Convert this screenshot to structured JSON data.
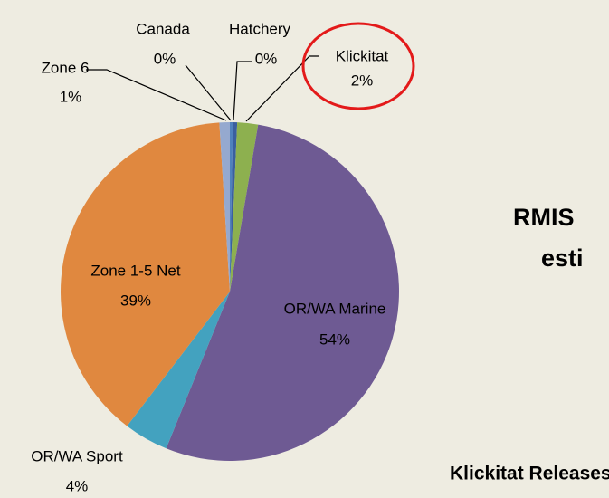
{
  "chart_data": {
    "type": "pie",
    "categories": [
      "Canada",
      "Hatchery",
      "Klickitat",
      "OR/WA Marine",
      "OR/WA Sport",
      "Zone 1-5 Net",
      "Zone 6"
    ],
    "values": [
      0.3,
      0.4,
      2,
      54,
      4.3,
      39,
      1
    ],
    "value_labels": [
      "0%",
      "0%",
      "2%",
      "54%",
      "4%",
      "39%",
      "1%"
    ],
    "colors": [
      "#4f81bd",
      "#3a5fa0",
      "#8db04f",
      "#6e5a93",
      "#43a2bf",
      "#e0883f",
      "#95a9cf"
    ],
    "annotations": [
      "RMIS",
      "esti",
      "Klickitat Releases"
    ]
  }
}
